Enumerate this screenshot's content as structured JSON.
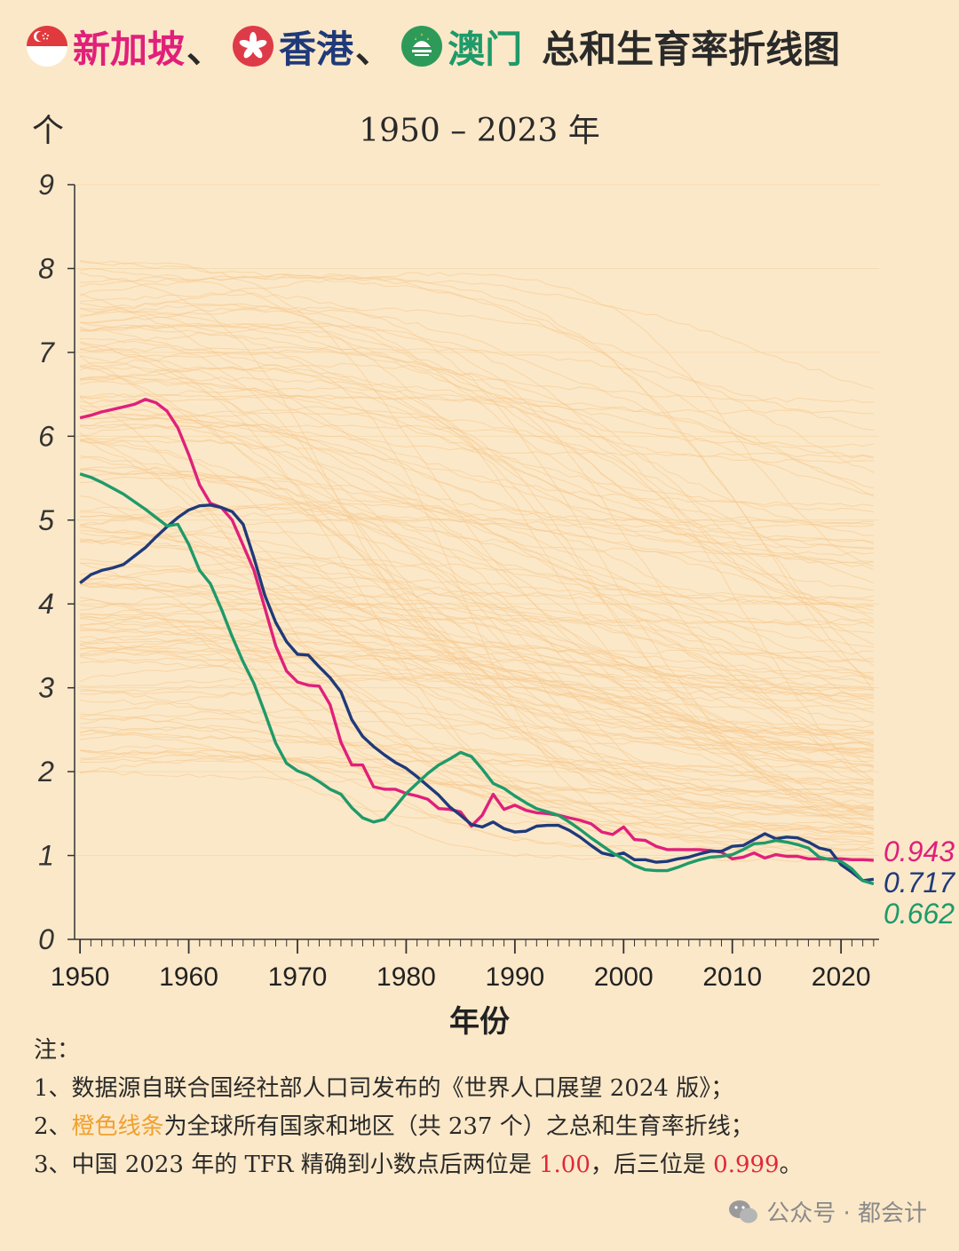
{
  "title": {
    "sg": "新加坡",
    "sep1": "、",
    "hk": "香港",
    "sep2": "、",
    "mo": "澳门",
    "rest": "总和生育率折线图"
  },
  "subtitle": "1950 – 2023 年",
  "colors": {
    "background": "#fbe8c8",
    "singapore": "#e0207a",
    "hongkong": "#1f3a7a",
    "macau": "#1f9a6a",
    "others": "#f7c98e",
    "highlight_red": "#e0283a",
    "orange_text": "#f0a030"
  },
  "chart_data": {
    "type": "line",
    "xlabel": "年份",
    "ylabel": "个",
    "xlim": [
      1949.5,
      2023.5
    ],
    "ylim": [
      0,
      9
    ],
    "x_ticks": [
      1950,
      1960,
      1970,
      1980,
      1990,
      2000,
      2010,
      2020
    ],
    "y_ticks": [
      0,
      1,
      2,
      3,
      4,
      5,
      6,
      7,
      8,
      9
    ],
    "series": [
      {
        "name": "新加坡",
        "color": "#e0207a",
        "end_label": "0.943",
        "points": [
          [
            1950,
            6.22
          ],
          [
            1951,
            6.25
          ],
          [
            1952,
            6.29
          ],
          [
            1953,
            6.32
          ],
          [
            1954,
            6.35
          ],
          [
            1955,
            6.38
          ],
          [
            1956,
            6.44
          ],
          [
            1957,
            6.4
          ],
          [
            1958,
            6.3
          ],
          [
            1959,
            6.1
          ],
          [
            1960,
            5.78
          ],
          [
            1961,
            5.42
          ],
          [
            1962,
            5.2
          ],
          [
            1963,
            5.15
          ],
          [
            1964,
            5.0
          ],
          [
            1965,
            4.7
          ],
          [
            1966,
            4.4
          ],
          [
            1967,
            3.95
          ],
          [
            1968,
            3.5
          ],
          [
            1969,
            3.2
          ],
          [
            1970,
            3.07
          ],
          [
            1971,
            3.03
          ],
          [
            1972,
            3.02
          ],
          [
            1973,
            2.8
          ],
          [
            1974,
            2.35
          ],
          [
            1975,
            2.08
          ],
          [
            1976,
            2.08
          ],
          [
            1977,
            1.82
          ],
          [
            1978,
            1.79
          ],
          [
            1979,
            1.79
          ],
          [
            1980,
            1.74
          ],
          [
            1981,
            1.71
          ],
          [
            1982,
            1.67
          ],
          [
            1983,
            1.56
          ],
          [
            1984,
            1.55
          ],
          [
            1985,
            1.52
          ],
          [
            1986,
            1.35
          ],
          [
            1987,
            1.48
          ],
          [
            1988,
            1.73
          ],
          [
            1989,
            1.55
          ],
          [
            1990,
            1.6
          ],
          [
            1991,
            1.54
          ],
          [
            1992,
            1.51
          ],
          [
            1993,
            1.5
          ],
          [
            1994,
            1.48
          ],
          [
            1995,
            1.45
          ],
          [
            1996,
            1.42
          ],
          [
            1997,
            1.38
          ],
          [
            1998,
            1.28
          ],
          [
            1999,
            1.25
          ],
          [
            2000,
            1.34
          ],
          [
            2001,
            1.19
          ],
          [
            2002,
            1.18
          ],
          [
            2003,
            1.11
          ],
          [
            2004,
            1.07
          ],
          [
            2005,
            1.07
          ],
          [
            2006,
            1.07
          ],
          [
            2007,
            1.07
          ],
          [
            2008,
            1.06
          ],
          [
            2009,
            1.04
          ],
          [
            2010,
            0.96
          ],
          [
            2011,
            0.98
          ],
          [
            2012,
            1.03
          ],
          [
            2013,
            0.97
          ],
          [
            2014,
            1.01
          ],
          [
            2015,
            0.99
          ],
          [
            2016,
            0.99
          ],
          [
            2017,
            0.96
          ],
          [
            2018,
            0.96
          ],
          [
            2019,
            0.96
          ],
          [
            2020,
            0.96
          ],
          [
            2021,
            0.95
          ],
          [
            2022,
            0.95
          ],
          [
            2023,
            0.943
          ]
        ]
      },
      {
        "name": "香港",
        "color": "#1f3a7a",
        "end_label": "0.717",
        "points": [
          [
            1950,
            4.25
          ],
          [
            1951,
            4.35
          ],
          [
            1952,
            4.4
          ],
          [
            1953,
            4.43
          ],
          [
            1954,
            4.47
          ],
          [
            1955,
            4.57
          ],
          [
            1956,
            4.67
          ],
          [
            1957,
            4.8
          ],
          [
            1958,
            4.92
          ],
          [
            1959,
            5.03
          ],
          [
            1960,
            5.12
          ],
          [
            1961,
            5.17
          ],
          [
            1962,
            5.18
          ],
          [
            1963,
            5.15
          ],
          [
            1964,
            5.1
          ],
          [
            1965,
            4.95
          ],
          [
            1966,
            4.55
          ],
          [
            1967,
            4.1
          ],
          [
            1968,
            3.78
          ],
          [
            1969,
            3.55
          ],
          [
            1970,
            3.4
          ],
          [
            1971,
            3.39
          ],
          [
            1972,
            3.25
          ],
          [
            1973,
            3.12
          ],
          [
            1974,
            2.95
          ],
          [
            1975,
            2.62
          ],
          [
            1976,
            2.42
          ],
          [
            1977,
            2.3
          ],
          [
            1978,
            2.2
          ],
          [
            1979,
            2.11
          ],
          [
            1980,
            2.04
          ],
          [
            1981,
            1.94
          ],
          [
            1982,
            1.83
          ],
          [
            1983,
            1.72
          ],
          [
            1984,
            1.58
          ],
          [
            1985,
            1.48
          ],
          [
            1986,
            1.37
          ],
          [
            1987,
            1.34
          ],
          [
            1988,
            1.4
          ],
          [
            1989,
            1.32
          ],
          [
            1990,
            1.28
          ],
          [
            1991,
            1.29
          ],
          [
            1992,
            1.35
          ],
          [
            1993,
            1.36
          ],
          [
            1994,
            1.36
          ],
          [
            1995,
            1.3
          ],
          [
            1996,
            1.22
          ],
          [
            1997,
            1.12
          ],
          [
            1998,
            1.03
          ],
          [
            1999,
            1.0
          ],
          [
            2000,
            1.03
          ],
          [
            2001,
            0.95
          ],
          [
            2002,
            0.95
          ],
          [
            2003,
            0.92
          ],
          [
            2004,
            0.93
          ],
          [
            2005,
            0.96
          ],
          [
            2006,
            0.98
          ],
          [
            2007,
            1.02
          ],
          [
            2008,
            1.05
          ],
          [
            2009,
            1.05
          ],
          [
            2010,
            1.11
          ],
          [
            2011,
            1.12
          ],
          [
            2012,
            1.19
          ],
          [
            2013,
            1.26
          ],
          [
            2014,
            1.2
          ],
          [
            2015,
            1.22
          ],
          [
            2016,
            1.21
          ],
          [
            2017,
            1.16
          ],
          [
            2018,
            1.09
          ],
          [
            2019,
            1.06
          ],
          [
            2020,
            0.89
          ],
          [
            2021,
            0.8
          ],
          [
            2022,
            0.7
          ],
          [
            2023,
            0.717
          ]
        ]
      },
      {
        "name": "澳门",
        "color": "#1f9a6a",
        "end_label": "0.662",
        "points": [
          [
            1950,
            5.55
          ],
          [
            1951,
            5.51
          ],
          [
            1952,
            5.45
          ],
          [
            1953,
            5.38
          ],
          [
            1954,
            5.31
          ],
          [
            1955,
            5.22
          ],
          [
            1956,
            5.13
          ],
          [
            1957,
            5.03
          ],
          [
            1958,
            4.93
          ],
          [
            1959,
            4.95
          ],
          [
            1960,
            4.71
          ],
          [
            1961,
            4.4
          ],
          [
            1962,
            4.24
          ],
          [
            1963,
            3.94
          ],
          [
            1964,
            3.61
          ],
          [
            1965,
            3.31
          ],
          [
            1966,
            3.05
          ],
          [
            1967,
            2.7
          ],
          [
            1968,
            2.34
          ],
          [
            1969,
            2.1
          ],
          [
            1970,
            2.01
          ],
          [
            1971,
            1.96
          ],
          [
            1972,
            1.88
          ],
          [
            1973,
            1.79
          ],
          [
            1974,
            1.73
          ],
          [
            1975,
            1.57
          ],
          [
            1976,
            1.45
          ],
          [
            1977,
            1.4
          ],
          [
            1978,
            1.43
          ],
          [
            1979,
            1.58
          ],
          [
            1980,
            1.74
          ],
          [
            1981,
            1.86
          ],
          [
            1982,
            1.98
          ],
          [
            1983,
            2.08
          ],
          [
            1984,
            2.15
          ],
          [
            1985,
            2.23
          ],
          [
            1986,
            2.18
          ],
          [
            1987,
            2.03
          ],
          [
            1988,
            1.86
          ],
          [
            1989,
            1.8
          ],
          [
            1990,
            1.71
          ],
          [
            1991,
            1.63
          ],
          [
            1992,
            1.56
          ],
          [
            1993,
            1.52
          ],
          [
            1994,
            1.48
          ],
          [
            1995,
            1.4
          ],
          [
            1996,
            1.31
          ],
          [
            1997,
            1.21
          ],
          [
            1998,
            1.12
          ],
          [
            1999,
            1.03
          ],
          [
            2000,
            0.96
          ],
          [
            2001,
            0.88
          ],
          [
            2002,
            0.83
          ],
          [
            2003,
            0.82
          ],
          [
            2004,
            0.82
          ],
          [
            2005,
            0.86
          ],
          [
            2006,
            0.91
          ],
          [
            2007,
            0.95
          ],
          [
            2008,
            0.98
          ],
          [
            2009,
            0.99
          ],
          [
            2010,
            1.01
          ],
          [
            2011,
            1.07
          ],
          [
            2012,
            1.14
          ],
          [
            2013,
            1.15
          ],
          [
            2014,
            1.18
          ],
          [
            2015,
            1.16
          ],
          [
            2016,
            1.13
          ],
          [
            2017,
            1.09
          ],
          [
            2018,
            0.98
          ],
          [
            2019,
            0.95
          ],
          [
            2020,
            0.93
          ],
          [
            2021,
            0.84
          ],
          [
            2022,
            0.7
          ],
          [
            2023,
            0.662
          ]
        ]
      }
    ],
    "background_series": {
      "description_count": 237,
      "count_drawn": 140
    }
  },
  "notes": {
    "header": "注：",
    "line1": "1、数据源自联合国经社部人口司发布的《世界人口展望 2024 版》；",
    "line2_hl": "橙色线条",
    "line2_prefix": "2、",
    "line2_rest": "为全球所有国家和地区（共 237 个）之总和生育率折线；",
    "line3_prefix": "3、中国 2023 年的 TFR 精确到小数点后两位是 ",
    "line3_v1": "1.00",
    "line3_mid": "，后三位是 ",
    "line3_v2": "0.999",
    "line3_end": "。"
  },
  "watermark": "公众号 · 都会计"
}
